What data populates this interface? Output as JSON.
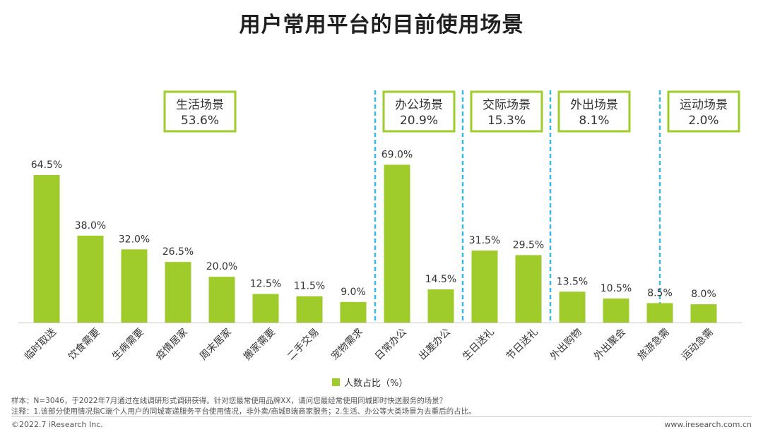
{
  "title": "用户常用平台的目前使用场景",
  "chart_data": {
    "type": "bar",
    "title": "用户常用平台的目前使用场景",
    "xlabel": "",
    "ylabel": "",
    "ylim": [
      0,
      100
    ],
    "series": [
      {
        "name": "人数占比（%）",
        "color": "#9fcc2a"
      }
    ],
    "categories": [
      "临时取送",
      "饮食需要",
      "生病需要",
      "疫情居家",
      "周末居家",
      "搬家需要",
      "二手交易",
      "宠物需求",
      "日常办公",
      "出差办公",
      "生日送礼",
      "节日送礼",
      "外出购物",
      "外出聚会",
      "旅游急需",
      "运动急需"
    ],
    "values": [
      64.5,
      38.0,
      32.0,
      26.5,
      20.0,
      12.5,
      11.5,
      9.0,
      69.0,
      14.5,
      31.5,
      29.5,
      13.5,
      10.5,
      8.5,
      8.0
    ],
    "value_labels": [
      "64.5%",
      "38.0%",
      "32.0%",
      "26.5%",
      "20.0%",
      "12.5%",
      "11.5%",
      "9.0%",
      "69.0%",
      "14.5%",
      "31.5%",
      "29.5%",
      "13.5%",
      "10.5%",
      "8.5%",
      "8.0%"
    ],
    "groups": [
      {
        "name": "生活场景",
        "share": "53.6%",
        "first": 0,
        "last": 7
      },
      {
        "name": "办公场景",
        "share": "20.9%",
        "first": 8,
        "last": 9
      },
      {
        "name": "交际场景",
        "share": "15.3%",
        "first": 10,
        "last": 11
      },
      {
        "name": "外出场景",
        "share": "8.1%",
        "first": 12,
        "last": 13
      },
      {
        "name": "运动场景",
        "share": "2.0%",
        "first": 15,
        "last": 15
      }
    ]
  },
  "legend": {
    "label": "人数占比（%）"
  },
  "notes": {
    "sample": "样本：N=3046，于2022年7月通过在线调研形式调研获得。针对您最常使用品牌XX，请问您最经常使用同城即时快送服务的场景？",
    "remark": "注释：1.该部分使用情况指C端个人用户的同城寄递服务平台使用情况，非外卖/商城B端商家服务；2.生活、办公等大类场景为去重后的占比。"
  },
  "footer": {
    "copyright": "©2022.7 iResearch Inc.",
    "website": "www.iresearch.com.cn"
  },
  "colors": {
    "bar": "#9fcc2a",
    "box_border": "#9fcc2a",
    "divider": "#3bb8e6"
  }
}
